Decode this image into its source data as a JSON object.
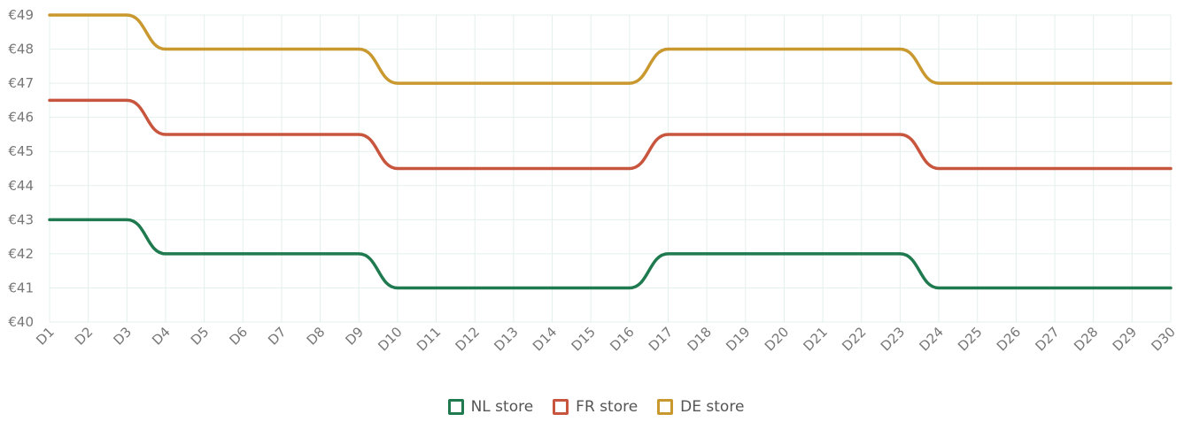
{
  "chart_data": {
    "type": "line",
    "categories": [
      "D1",
      "D2",
      "D3",
      "D4",
      "D5",
      "D6",
      "D7",
      "D8",
      "D9",
      "D10",
      "D11",
      "D12",
      "D13",
      "D14",
      "D15",
      "D16",
      "D17",
      "D18",
      "D19",
      "D20",
      "D21",
      "D22",
      "D23",
      "D24",
      "D25",
      "D26",
      "D27",
      "D28",
      "D29",
      "D30"
    ],
    "y_ticks": [
      "€40",
      "€41",
      "€42",
      "€43",
      "€44",
      "€45",
      "€46",
      "€47",
      "€48",
      "€49"
    ],
    "ylim": [
      40,
      49
    ],
    "grid": true,
    "legend_position": "bottom",
    "series": [
      {
        "name": "NL store",
        "color": "#1f7a4f",
        "values": [
          43,
          43,
          43,
          42,
          42,
          42,
          42,
          42,
          42,
          41,
          41,
          41,
          41,
          41,
          41,
          41,
          42,
          42,
          42,
          42,
          42,
          42,
          42,
          41,
          41,
          41,
          41,
          41,
          41,
          41
        ]
      },
      {
        "name": "FR store",
        "color": "#c8553d",
        "values": [
          46.5,
          46.5,
          46.5,
          45.5,
          45.5,
          45.5,
          45.5,
          45.5,
          45.5,
          44.5,
          44.5,
          44.5,
          44.5,
          44.5,
          44.5,
          44.5,
          45.5,
          45.5,
          45.5,
          45.5,
          45.5,
          45.5,
          45.5,
          44.5,
          44.5,
          44.5,
          44.5,
          44.5,
          44.5,
          44.5
        ]
      },
      {
        "name": "DE store",
        "color": "#c9982f",
        "values": [
          49,
          49,
          49,
          48,
          48,
          48,
          48,
          48,
          48,
          47,
          47,
          47,
          47,
          47,
          47,
          47,
          48,
          48,
          48,
          48,
          48,
          48,
          48,
          47,
          47,
          47,
          47,
          47,
          47,
          47
        ]
      }
    ]
  }
}
